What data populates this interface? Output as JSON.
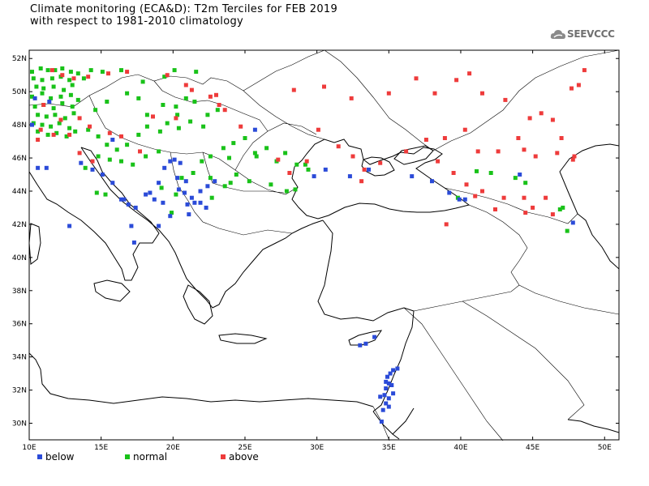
{
  "title": {
    "line1": "Climate monitoring (ECA&D): T2m Terciles for FEB 2019",
    "line2": "with respect to 1981-2010 climatology"
  },
  "logo": {
    "text": "SEEVCCC",
    "icon": "cloud-icon"
  },
  "map": {
    "lon_range": [
      10,
      51
    ],
    "lat_range": [
      29,
      52.5
    ],
    "lon_ticks": [
      10,
      15,
      20,
      25,
      30,
      35,
      40,
      45,
      50
    ],
    "lat_ticks": [
      30,
      32,
      34,
      36,
      38,
      40,
      42,
      44,
      46,
      48,
      50,
      52
    ],
    "lon_labels": [
      "10E",
      "15E",
      "20E",
      "25E",
      "30E",
      "35E",
      "40E",
      "45E",
      "50E"
    ],
    "lat_labels": [
      "30N",
      "32N",
      "34N",
      "36N",
      "38N",
      "40N",
      "42N",
      "44N",
      "46N",
      "48N",
      "50N",
      "52N"
    ]
  },
  "legend": {
    "below": {
      "label": "below",
      "color": "#2b4bd8"
    },
    "normal": {
      "label": "normal",
      "color": "#19c219"
    },
    "above": {
      "label": "above",
      "color": "#ee3b3b"
    }
  },
  "stations": {
    "below": [
      [
        10.4,
        49.6
      ],
      [
        11.4,
        49.4
      ],
      [
        10.2,
        48.0
      ],
      [
        10.6,
        45.4
      ],
      [
        11.2,
        45.4
      ],
      [
        12.8,
        41.9
      ],
      [
        13.6,
        45.7
      ],
      [
        14.4,
        45.3
      ],
      [
        15.1,
        45.0
      ],
      [
        15.8,
        44.5
      ],
      [
        16.4,
        43.5
      ],
      [
        16.9,
        43.2
      ],
      [
        17.4,
        43.0
      ],
      [
        18.1,
        43.8
      ],
      [
        18.4,
        43.9
      ],
      [
        19.0,
        44.5
      ],
      [
        19.4,
        45.4
      ],
      [
        19.8,
        45.8
      ],
      [
        20.1,
        45.9
      ],
      [
        20.5,
        45.7
      ],
      [
        20.3,
        44.8
      ],
      [
        20.9,
        44.6
      ],
      [
        20.4,
        44.1
      ],
      [
        20.8,
        43.9
      ],
      [
        21.3,
        43.6
      ],
      [
        21.0,
        43.2
      ],
      [
        21.5,
        43.3
      ],
      [
        21.9,
        43.3
      ],
      [
        22.3,
        43.0
      ],
      [
        19.3,
        43.3
      ],
      [
        18.7,
        43.5
      ],
      [
        19.8,
        42.5
      ],
      [
        21.1,
        42.6
      ],
      [
        21.9,
        44.0
      ],
      [
        22.4,
        44.3
      ],
      [
        22.9,
        44.6
      ],
      [
        17.1,
        41.9
      ],
      [
        17.3,
        40.9
      ],
      [
        16.6,
        43.5
      ],
      [
        15.8,
        47.1
      ],
      [
        19.0,
        41.9
      ],
      [
        25.7,
        47.7
      ],
      [
        34.0,
        35.2
      ],
      [
        33.4,
        34.8
      ],
      [
        33.0,
        34.7
      ],
      [
        34.8,
        32.1
      ],
      [
        34.9,
        32.8
      ],
      [
        35.3,
        33.2
      ],
      [
        35.1,
        33.0
      ],
      [
        34.7,
        31.7
      ],
      [
        35.0,
        31.5
      ],
      [
        34.8,
        31.2
      ],
      [
        34.6,
        30.8
      ],
      [
        34.5,
        30.1
      ],
      [
        35.2,
        32.3
      ],
      [
        35.6,
        33.3
      ],
      [
        35.3,
        31.8
      ],
      [
        35.0,
        32.4
      ],
      [
        34.8,
        32.5
      ],
      [
        34.4,
        31.6
      ],
      [
        35.0,
        31.0
      ],
      [
        29.8,
        44.9
      ],
      [
        30.6,
        45.3
      ],
      [
        32.3,
        44.9
      ],
      [
        33.6,
        45.3
      ],
      [
        36.6,
        44.9
      ],
      [
        38.0,
        44.6
      ],
      [
        39.2,
        43.9
      ],
      [
        39.9,
        43.5
      ],
      [
        40.3,
        43.5
      ],
      [
        44.1,
        45.0
      ],
      [
        47.8,
        42.1
      ]
    ],
    "normal": [
      [
        10.2,
        51.2
      ],
      [
        10.8,
        51.4
      ],
      [
        11.3,
        51.3
      ],
      [
        11.8,
        51.3
      ],
      [
        12.3,
        51.4
      ],
      [
        12.9,
        51.2
      ],
      [
        13.4,
        51.1
      ],
      [
        14.3,
        51.3
      ],
      [
        15.1,
        51.2
      ],
      [
        16.4,
        51.3
      ],
      [
        10.3,
        50.8
      ],
      [
        10.9,
        50.7
      ],
      [
        11.6,
        50.8
      ],
      [
        12.2,
        50.9
      ],
      [
        12.8,
        50.7
      ],
      [
        13.8,
        50.8
      ],
      [
        10.5,
        50.3
      ],
      [
        11.0,
        50.2
      ],
      [
        11.7,
        50.3
      ],
      [
        12.4,
        50.1
      ],
      [
        13.0,
        50.4
      ],
      [
        10.2,
        49.7
      ],
      [
        10.9,
        49.9
      ],
      [
        11.5,
        49.6
      ],
      [
        12.2,
        49.7
      ],
      [
        12.9,
        49.8
      ],
      [
        13.4,
        49.5
      ],
      [
        10.4,
        49.1
      ],
      [
        11.0,
        49.2
      ],
      [
        11.7,
        49.0
      ],
      [
        12.3,
        49.3
      ],
      [
        13.0,
        49.1
      ],
      [
        10.6,
        48.6
      ],
      [
        11.2,
        48.5
      ],
      [
        11.8,
        48.6
      ],
      [
        12.5,
        48.4
      ],
      [
        13.1,
        48.7
      ],
      [
        10.3,
        48.1
      ],
      [
        10.9,
        48.0
      ],
      [
        11.5,
        47.9
      ],
      [
        12.1,
        48.1
      ],
      [
        12.8,
        47.8
      ],
      [
        10.6,
        47.6
      ],
      [
        11.3,
        47.4
      ],
      [
        11.9,
        47.5
      ],
      [
        12.6,
        47.3
      ],
      [
        13.2,
        47.6
      ],
      [
        14.1,
        47.7
      ],
      [
        14.8,
        47.3
      ],
      [
        15.4,
        46.8
      ],
      [
        16.1,
        46.5
      ],
      [
        14.8,
        46.1
      ],
      [
        15.6,
        45.9
      ],
      [
        16.4,
        45.8
      ],
      [
        17.2,
        45.6
      ],
      [
        13.9,
        45.4
      ],
      [
        16.8,
        46.8
      ],
      [
        17.6,
        47.4
      ],
      [
        18.2,
        47.9
      ],
      [
        19.1,
        47.6
      ],
      [
        19.6,
        48.1
      ],
      [
        20.4,
        47.8
      ],
      [
        21.2,
        48.2
      ],
      [
        22.1,
        47.9
      ],
      [
        18.2,
        48.6
      ],
      [
        19.3,
        49.2
      ],
      [
        20.2,
        49.1
      ],
      [
        20.9,
        49.6
      ],
      [
        21.5,
        49.4
      ],
      [
        22.4,
        48.6
      ],
      [
        23.1,
        48.9
      ],
      [
        20.3,
        48.6
      ],
      [
        17.9,
        50.6
      ],
      [
        19.4,
        50.9
      ],
      [
        20.1,
        51.3
      ],
      [
        21.6,
        51.2
      ],
      [
        16.8,
        49.9
      ],
      [
        17.6,
        49.6
      ],
      [
        15.4,
        49.4
      ],
      [
        14.6,
        48.9
      ],
      [
        18.1,
        46.1
      ],
      [
        19.0,
        46.4
      ],
      [
        22.0,
        45.8
      ],
      [
        22.6,
        46.1
      ],
      [
        23.5,
        46.6
      ],
      [
        24.2,
        46.9
      ],
      [
        25.0,
        47.2
      ],
      [
        25.7,
        46.3
      ],
      [
        26.5,
        46.6
      ],
      [
        27.2,
        45.8
      ],
      [
        27.8,
        46.3
      ],
      [
        28.6,
        45.6
      ],
      [
        29.4,
        45.3
      ],
      [
        24.4,
        45.0
      ],
      [
        25.3,
        44.6
      ],
      [
        26.8,
        44.4
      ],
      [
        27.9,
        44.0
      ],
      [
        28.5,
        44.1
      ],
      [
        29.2,
        45.6
      ],
      [
        23.6,
        44.3
      ],
      [
        24.0,
        44.5
      ],
      [
        22.7,
        43.6
      ],
      [
        20.2,
        43.8
      ],
      [
        19.2,
        44.2
      ],
      [
        20.6,
        44.8
      ],
      [
        22.6,
        44.8
      ],
      [
        21.4,
        45.1
      ],
      [
        14.7,
        43.9
      ],
      [
        15.3,
        43.8
      ],
      [
        25.8,
        46.1
      ],
      [
        41.1,
        45.2
      ],
      [
        42.1,
        45.1
      ],
      [
        43.8,
        44.8
      ],
      [
        39.8,
        43.6
      ],
      [
        47.4,
        41.6
      ],
      [
        47.1,
        43.0
      ],
      [
        46.9,
        42.9
      ],
      [
        44.5,
        44.5
      ],
      [
        23.9,
        46.0
      ],
      [
        19.9,
        42.7
      ]
    ],
    "above": [
      [
        11.6,
        51.3
      ],
      [
        12.3,
        51.0
      ],
      [
        13.1,
        50.8
      ],
      [
        14.1,
        50.9
      ],
      [
        15.5,
        51.1
      ],
      [
        16.8,
        51.2
      ],
      [
        19.6,
        51.0
      ],
      [
        20.9,
        50.4
      ],
      [
        11.0,
        49.2
      ],
      [
        12.2,
        48.3
      ],
      [
        13.5,
        48.4
      ],
      [
        14.2,
        47.9
      ],
      [
        15.6,
        47.5
      ],
      [
        16.4,
        47.3
      ],
      [
        17.7,
        46.4
      ],
      [
        10.8,
        47.7
      ],
      [
        10.6,
        47.1
      ],
      [
        11.7,
        47.4
      ],
      [
        12.8,
        47.4
      ],
      [
        13.5,
        46.3
      ],
      [
        14.4,
        45.8
      ],
      [
        18.6,
        48.5
      ],
      [
        20.2,
        48.4
      ],
      [
        22.6,
        49.7
      ],
      [
        23.2,
        49.2
      ],
      [
        23.6,
        48.9
      ],
      [
        21.3,
        50.1
      ],
      [
        23.0,
        49.8
      ],
      [
        24.7,
        47.9
      ],
      [
        27.3,
        45.9
      ],
      [
        28.1,
        45.1
      ],
      [
        29.3,
        45.8
      ],
      [
        30.1,
        47.7
      ],
      [
        31.5,
        46.7
      ],
      [
        32.5,
        46.1
      ],
      [
        33.3,
        45.3
      ],
      [
        28.4,
        50.1
      ],
      [
        30.5,
        50.3
      ],
      [
        32.4,
        49.6
      ],
      [
        35.0,
        49.9
      ],
      [
        36.9,
        50.8
      ],
      [
        38.2,
        49.9
      ],
      [
        39.7,
        50.7
      ],
      [
        40.6,
        51.1
      ],
      [
        41.5,
        49.9
      ],
      [
        43.1,
        49.5
      ],
      [
        44.8,
        48.4
      ],
      [
        44.0,
        47.2
      ],
      [
        45.6,
        48.7
      ],
      [
        46.4,
        48.3
      ],
      [
        47.7,
        50.2
      ],
      [
        48.6,
        51.3
      ],
      [
        48.2,
        50.4
      ],
      [
        47.0,
        47.2
      ],
      [
        47.9,
        46.1
      ],
      [
        46.7,
        46.3
      ],
      [
        45.2,
        46.1
      ],
      [
        44.4,
        46.5
      ],
      [
        42.6,
        46.4
      ],
      [
        41.2,
        46.4
      ],
      [
        40.3,
        47.7
      ],
      [
        38.9,
        47.2
      ],
      [
        37.6,
        47.1
      ],
      [
        36.2,
        46.4
      ],
      [
        34.4,
        45.7
      ],
      [
        33.1,
        44.6
      ],
      [
        38.4,
        45.8
      ],
      [
        39.5,
        45.1
      ],
      [
        40.4,
        44.4
      ],
      [
        41.0,
        43.7
      ],
      [
        42.4,
        42.9
      ],
      [
        43.0,
        43.6
      ],
      [
        44.4,
        43.6
      ],
      [
        45.9,
        43.6
      ],
      [
        46.4,
        42.6
      ],
      [
        47.8,
        45.9
      ],
      [
        44.5,
        42.7
      ],
      [
        41.5,
        44.0
      ],
      [
        39.0,
        42.0
      ],
      [
        45.0,
        43.0
      ]
    ]
  }
}
